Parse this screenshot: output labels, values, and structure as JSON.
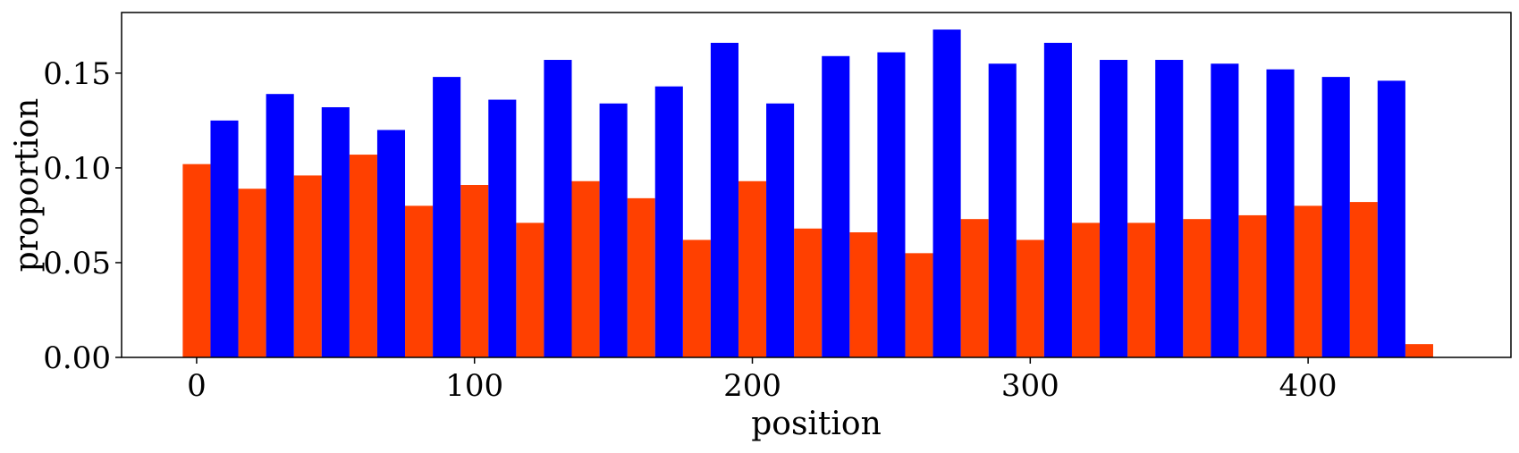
{
  "chart_data": {
    "type": "bar",
    "title": "",
    "xlabel": "position",
    "ylabel": "proportion",
    "xlim": [
      -27,
      473
    ],
    "ylim": [
      0,
      0.182
    ],
    "xticks": [
      0,
      100,
      200,
      300,
      400
    ],
    "xtick_labels": [
      "0",
      "100",
      "200",
      "300",
      "400"
    ],
    "yticks": [
      0.0,
      0.05,
      0.1,
      0.15
    ],
    "ytick_labels": [
      "0.00",
      "0.05",
      "0.10",
      "0.15"
    ],
    "grid": false,
    "bar_width": 10,
    "series": [
      {
        "color": "#ff4000",
        "x": [
          0,
          20,
          40,
          60,
          80,
          100,
          120,
          140,
          160,
          180,
          200,
          220,
          240,
          260,
          280,
          300,
          320,
          340,
          360,
          380,
          400,
          420,
          440
        ],
        "values": [
          0.102,
          0.089,
          0.096,
          0.107,
          0.08,
          0.091,
          0.071,
          0.093,
          0.084,
          0.062,
          0.093,
          0.068,
          0.066,
          0.055,
          0.073,
          0.062,
          0.071,
          0.071,
          0.073,
          0.075,
          0.08,
          0.082,
          0.007
        ]
      },
      {
        "color": "#0000ff",
        "x": [
          10,
          30,
          50,
          70,
          90,
          110,
          130,
          150,
          170,
          190,
          210,
          230,
          250,
          270,
          290,
          310,
          330,
          350,
          370,
          390,
          410,
          430
        ],
        "values": [
          0.125,
          0.139,
          0.132,
          0.12,
          0.148,
          0.136,
          0.157,
          0.134,
          0.143,
          0.166,
          0.134,
          0.159,
          0.161,
          0.173,
          0.155,
          0.166,
          0.157,
          0.157,
          0.155,
          0.152,
          0.148,
          0.146
        ]
      }
    ]
  }
}
